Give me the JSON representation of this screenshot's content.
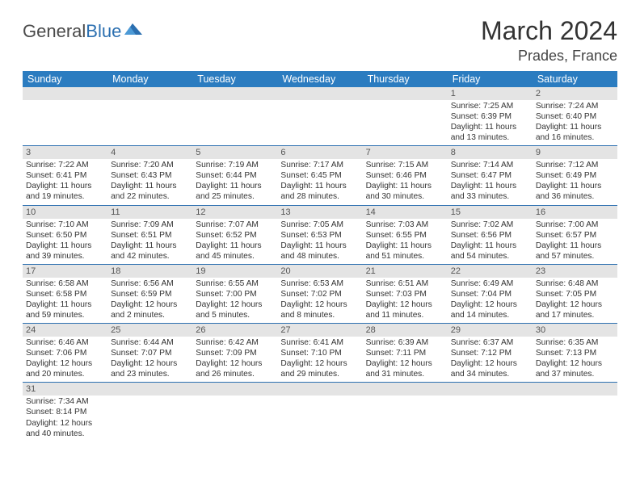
{
  "logo": {
    "general": "General",
    "blue": "Blue"
  },
  "title": "March 2024",
  "location": "Prades, France",
  "dayHeaders": [
    "Sunday",
    "Monday",
    "Tuesday",
    "Wednesday",
    "Thursday",
    "Friday",
    "Saturday"
  ],
  "colors": {
    "headerBg": "#2b7cc0",
    "borderBlue": "#2b6fb0",
    "dayBarBg": "#e4e4e4",
    "logoBlue": "#2b6fb0"
  },
  "weeks": [
    [
      {
        "day": "",
        "sunrise": "",
        "sunset": "",
        "daylight": ""
      },
      {
        "day": "",
        "sunrise": "",
        "sunset": "",
        "daylight": ""
      },
      {
        "day": "",
        "sunrise": "",
        "sunset": "",
        "daylight": ""
      },
      {
        "day": "",
        "sunrise": "",
        "sunset": "",
        "daylight": ""
      },
      {
        "day": "",
        "sunrise": "",
        "sunset": "",
        "daylight": ""
      },
      {
        "day": "1",
        "sunrise": "Sunrise: 7:25 AM",
        "sunset": "Sunset: 6:39 PM",
        "daylight": "Daylight: 11 hours and 13 minutes."
      },
      {
        "day": "2",
        "sunrise": "Sunrise: 7:24 AM",
        "sunset": "Sunset: 6:40 PM",
        "daylight": "Daylight: 11 hours and 16 minutes."
      }
    ],
    [
      {
        "day": "3",
        "sunrise": "Sunrise: 7:22 AM",
        "sunset": "Sunset: 6:41 PM",
        "daylight": "Daylight: 11 hours and 19 minutes."
      },
      {
        "day": "4",
        "sunrise": "Sunrise: 7:20 AM",
        "sunset": "Sunset: 6:43 PM",
        "daylight": "Daylight: 11 hours and 22 minutes."
      },
      {
        "day": "5",
        "sunrise": "Sunrise: 7:19 AM",
        "sunset": "Sunset: 6:44 PM",
        "daylight": "Daylight: 11 hours and 25 minutes."
      },
      {
        "day": "6",
        "sunrise": "Sunrise: 7:17 AM",
        "sunset": "Sunset: 6:45 PM",
        "daylight": "Daylight: 11 hours and 28 minutes."
      },
      {
        "day": "7",
        "sunrise": "Sunrise: 7:15 AM",
        "sunset": "Sunset: 6:46 PM",
        "daylight": "Daylight: 11 hours and 30 minutes."
      },
      {
        "day": "8",
        "sunrise": "Sunrise: 7:14 AM",
        "sunset": "Sunset: 6:47 PM",
        "daylight": "Daylight: 11 hours and 33 minutes."
      },
      {
        "day": "9",
        "sunrise": "Sunrise: 7:12 AM",
        "sunset": "Sunset: 6:49 PM",
        "daylight": "Daylight: 11 hours and 36 minutes."
      }
    ],
    [
      {
        "day": "10",
        "sunrise": "Sunrise: 7:10 AM",
        "sunset": "Sunset: 6:50 PM",
        "daylight": "Daylight: 11 hours and 39 minutes."
      },
      {
        "day": "11",
        "sunrise": "Sunrise: 7:09 AM",
        "sunset": "Sunset: 6:51 PM",
        "daylight": "Daylight: 11 hours and 42 minutes."
      },
      {
        "day": "12",
        "sunrise": "Sunrise: 7:07 AM",
        "sunset": "Sunset: 6:52 PM",
        "daylight": "Daylight: 11 hours and 45 minutes."
      },
      {
        "day": "13",
        "sunrise": "Sunrise: 7:05 AM",
        "sunset": "Sunset: 6:53 PM",
        "daylight": "Daylight: 11 hours and 48 minutes."
      },
      {
        "day": "14",
        "sunrise": "Sunrise: 7:03 AM",
        "sunset": "Sunset: 6:55 PM",
        "daylight": "Daylight: 11 hours and 51 minutes."
      },
      {
        "day": "15",
        "sunrise": "Sunrise: 7:02 AM",
        "sunset": "Sunset: 6:56 PM",
        "daylight": "Daylight: 11 hours and 54 minutes."
      },
      {
        "day": "16",
        "sunrise": "Sunrise: 7:00 AM",
        "sunset": "Sunset: 6:57 PM",
        "daylight": "Daylight: 11 hours and 57 minutes."
      }
    ],
    [
      {
        "day": "17",
        "sunrise": "Sunrise: 6:58 AM",
        "sunset": "Sunset: 6:58 PM",
        "daylight": "Daylight: 11 hours and 59 minutes."
      },
      {
        "day": "18",
        "sunrise": "Sunrise: 6:56 AM",
        "sunset": "Sunset: 6:59 PM",
        "daylight": "Daylight: 12 hours and 2 minutes."
      },
      {
        "day": "19",
        "sunrise": "Sunrise: 6:55 AM",
        "sunset": "Sunset: 7:00 PM",
        "daylight": "Daylight: 12 hours and 5 minutes."
      },
      {
        "day": "20",
        "sunrise": "Sunrise: 6:53 AM",
        "sunset": "Sunset: 7:02 PM",
        "daylight": "Daylight: 12 hours and 8 minutes."
      },
      {
        "day": "21",
        "sunrise": "Sunrise: 6:51 AM",
        "sunset": "Sunset: 7:03 PM",
        "daylight": "Daylight: 12 hours and 11 minutes."
      },
      {
        "day": "22",
        "sunrise": "Sunrise: 6:49 AM",
        "sunset": "Sunset: 7:04 PM",
        "daylight": "Daylight: 12 hours and 14 minutes."
      },
      {
        "day": "23",
        "sunrise": "Sunrise: 6:48 AM",
        "sunset": "Sunset: 7:05 PM",
        "daylight": "Daylight: 12 hours and 17 minutes."
      }
    ],
    [
      {
        "day": "24",
        "sunrise": "Sunrise: 6:46 AM",
        "sunset": "Sunset: 7:06 PM",
        "daylight": "Daylight: 12 hours and 20 minutes."
      },
      {
        "day": "25",
        "sunrise": "Sunrise: 6:44 AM",
        "sunset": "Sunset: 7:07 PM",
        "daylight": "Daylight: 12 hours and 23 minutes."
      },
      {
        "day": "26",
        "sunrise": "Sunrise: 6:42 AM",
        "sunset": "Sunset: 7:09 PM",
        "daylight": "Daylight: 12 hours and 26 minutes."
      },
      {
        "day": "27",
        "sunrise": "Sunrise: 6:41 AM",
        "sunset": "Sunset: 7:10 PM",
        "daylight": "Daylight: 12 hours and 29 minutes."
      },
      {
        "day": "28",
        "sunrise": "Sunrise: 6:39 AM",
        "sunset": "Sunset: 7:11 PM",
        "daylight": "Daylight: 12 hours and 31 minutes."
      },
      {
        "day": "29",
        "sunrise": "Sunrise: 6:37 AM",
        "sunset": "Sunset: 7:12 PM",
        "daylight": "Daylight: 12 hours and 34 minutes."
      },
      {
        "day": "30",
        "sunrise": "Sunrise: 6:35 AM",
        "sunset": "Sunset: 7:13 PM",
        "daylight": "Daylight: 12 hours and 37 minutes."
      }
    ],
    [
      {
        "day": "31",
        "sunrise": "Sunrise: 7:34 AM",
        "sunset": "Sunset: 8:14 PM",
        "daylight": "Daylight: 12 hours and 40 minutes."
      },
      {
        "day": "",
        "sunrise": "",
        "sunset": "",
        "daylight": ""
      },
      {
        "day": "",
        "sunrise": "",
        "sunset": "",
        "daylight": ""
      },
      {
        "day": "",
        "sunrise": "",
        "sunset": "",
        "daylight": ""
      },
      {
        "day": "",
        "sunrise": "",
        "sunset": "",
        "daylight": ""
      },
      {
        "day": "",
        "sunrise": "",
        "sunset": "",
        "daylight": ""
      },
      {
        "day": "",
        "sunrise": "",
        "sunset": "",
        "daylight": ""
      }
    ]
  ]
}
